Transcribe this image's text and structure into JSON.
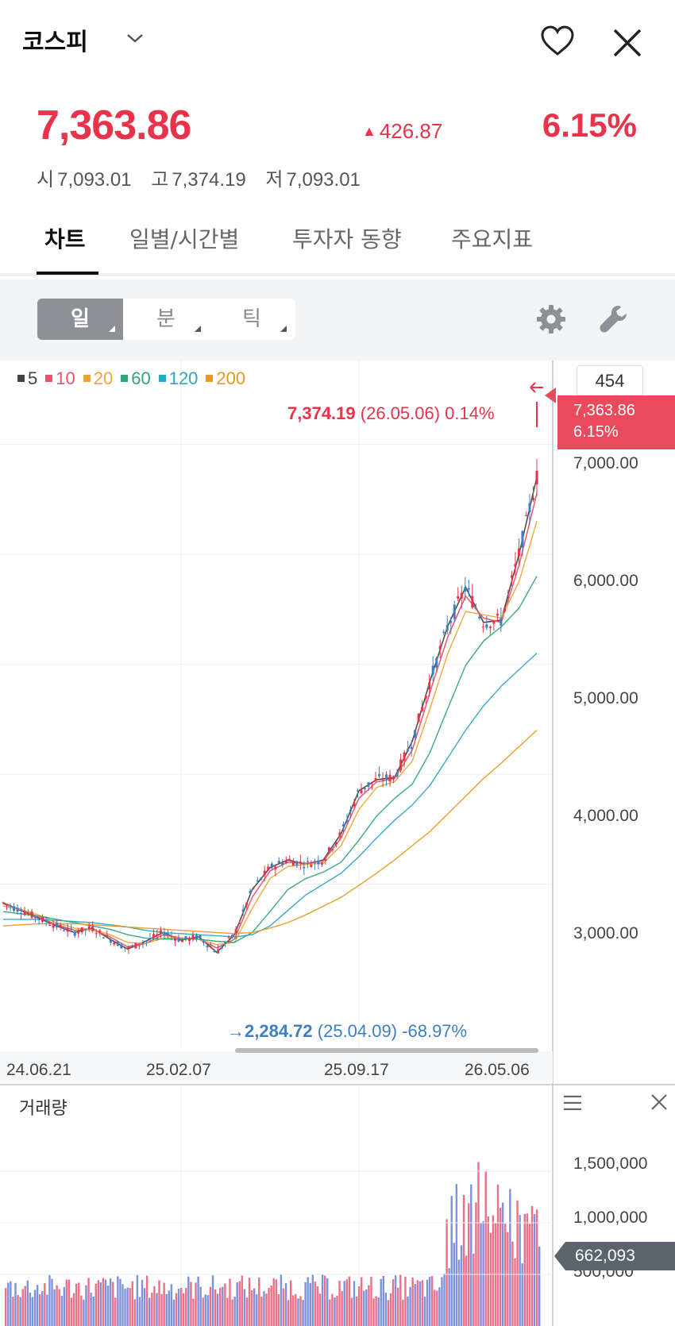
{
  "header": {
    "title": "코스피",
    "price": "7,363.86",
    "change": "426.87",
    "change_pct": "6.15%",
    "open_label": "시",
    "open": "7,093.01",
    "high_label": "고",
    "high": "7,374.19",
    "low_label": "저",
    "low": "7,093.01"
  },
  "tabs": [
    "차트",
    "일별/시간별",
    "투자자 동향",
    "주요지표"
  ],
  "toolbar": {
    "periods": [
      "일",
      "분",
      "틱"
    ]
  },
  "colors": {
    "up": "#e8334a",
    "down": "#3d7fc1"
  },
  "chart": {
    "count": "454",
    "legend": [
      {
        "label": "5",
        "color": "#444444"
      },
      {
        "label": "10",
        "color": "#e8556b"
      },
      {
        "label": "20",
        "color": "#f0a430"
      },
      {
        "label": "60",
        "color": "#33a57a"
      },
      {
        "label": "120",
        "color": "#2ba6c4"
      },
      {
        "label": "200",
        "color": "#e89a1c"
      }
    ],
    "current_price": "7,363.86",
    "current_pct": "6.15%",
    "high_value": "7,374.19",
    "high_detail": "(26.05.06) 0.14%",
    "low_value": "2,284.72",
    "low_detail": "(25.04.09) -68.97%",
    "y_labels": [
      "7,000.00",
      "6,000.00",
      "5,000.00",
      "4,000.00",
      "3,000.00"
    ],
    "x_labels": [
      "24.06.21",
      "25.02.07",
      "25.09.17",
      "26.05.06"
    ]
  },
  "volume": {
    "title": "거래량",
    "y_labels": [
      "1,500,000",
      "1,000,000",
      "500,000"
    ],
    "current": "662,093"
  },
  "chart_data": {
    "type": "line",
    "title": "",
    "x_ticks": [
      "24.06.21",
      "25.02.07",
      "25.09.17",
      "26.05.06"
    ],
    "y_ticks": [
      3000,
      4000,
      5000,
      6000,
      7000
    ],
    "ylim": [
      2150,
      7900
    ],
    "series": [
      {
        "name": "5",
        "values": [
          2830,
          2760,
          2690,
          2620,
          2560,
          2600,
          2500,
          2410,
          2480,
          2560,
          2490,
          2520,
          2380,
          2540,
          2950,
          3150,
          3220,
          3180,
          3220,
          3460,
          3850,
          3950,
          3970,
          4300,
          4850,
          5350,
          5700,
          5380,
          5400,
          6000,
          6700
        ]
      },
      {
        "name": "10",
        "values": [
          2820,
          2770,
          2700,
          2630,
          2580,
          2590,
          2520,
          2430,
          2460,
          2540,
          2510,
          2500,
          2420,
          2500,
          2880,
          3120,
          3200,
          3190,
          3210,
          3420,
          3780,
          3930,
          3960,
          4220,
          4750,
          5250,
          5620,
          5420,
          5380,
          5900,
          6550
        ]
      },
      {
        "name": "20",
        "values": [
          2800,
          2770,
          2720,
          2650,
          2600,
          2590,
          2540,
          2470,
          2460,
          2510,
          2510,
          2500,
          2450,
          2470,
          2780,
          3050,
          3160,
          3180,
          3190,
          3350,
          3680,
          3880,
          3930,
          4120,
          4600,
          5100,
          5480,
          5450,
          5420,
          5750,
          6300
        ]
      },
      {
        "name": "60",
        "values": [
          2750,
          2730,
          2710,
          2680,
          2650,
          2620,
          2590,
          2540,
          2510,
          2500,
          2500,
          2500,
          2480,
          2470,
          2560,
          2750,
          2950,
          3050,
          3110,
          3200,
          3400,
          3620,
          3780,
          3910,
          4200,
          4600,
          4990,
          5210,
          5340,
          5510,
          5800
        ]
      },
      {
        "name": "120",
        "values": [
          2680,
          2680,
          2680,
          2670,
          2660,
          2650,
          2630,
          2610,
          2580,
          2560,
          2550,
          2540,
          2530,
          2520,
          2540,
          2620,
          2760,
          2900,
          3000,
          3100,
          3250,
          3420,
          3580,
          3720,
          3900,
          4150,
          4400,
          4620,
          4800,
          4950,
          5100
        ]
      },
      {
        "name": "200",
        "values": [
          2620,
          2630,
          2640,
          2640,
          2640,
          2630,
          2620,
          2610,
          2600,
          2590,
          2580,
          2570,
          2560,
          2550,
          2560,
          2600,
          2650,
          2720,
          2800,
          2880,
          2990,
          3100,
          3220,
          3350,
          3480,
          3640,
          3800,
          3960,
          4100,
          4250,
          4400
        ]
      }
    ]
  }
}
